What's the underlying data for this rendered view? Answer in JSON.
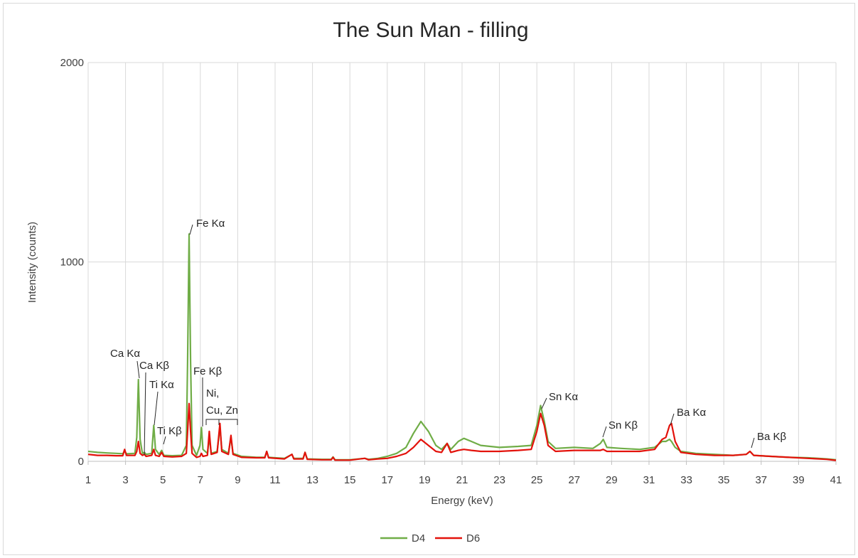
{
  "chart_data": {
    "type": "line",
    "title": "The Sun Man - filling",
    "x_label": "Energy (keV)",
    "y_label": "Intensity (counts)",
    "xlim": [
      1,
      41
    ],
    "xticks": [
      1,
      3,
      5,
      7,
      9,
      11,
      13,
      15,
      17,
      19,
      21,
      23,
      25,
      27,
      29,
      31,
      33,
      35,
      37,
      39,
      41
    ],
    "ylim": [
      0,
      2000
    ],
    "yticks": [
      0,
      1000,
      2000
    ],
    "grid": true,
    "legend": "bottom",
    "x": [
      1.0,
      1.5,
      2.0,
      2.5,
      2.85,
      2.95,
      3.05,
      3.5,
      3.6,
      3.69,
      3.78,
      3.9,
      4.01,
      4.1,
      4.4,
      4.51,
      4.6,
      4.8,
      4.93,
      5.05,
      5.5,
      6.0,
      6.25,
      6.32,
      6.4,
      6.48,
      6.56,
      6.8,
      6.98,
      7.06,
      7.14,
      7.38,
      7.48,
      7.58,
      7.9,
      8.05,
      8.15,
      8.5,
      8.64,
      8.75,
      9.2,
      10.0,
      10.45,
      10.55,
      10.65,
      11.5,
      11.9,
      12.0,
      12.5,
      12.6,
      12.72,
      13.5,
      14.0,
      14.1,
      14.2,
      15.0,
      15.8,
      16.0,
      16.5,
      17.0,
      17.5,
      18.0,
      18.4,
      18.8,
      19.2,
      19.6,
      19.9,
      20.2,
      20.4,
      20.8,
      21.1,
      21.5,
      22.0,
      23.0,
      24.0,
      24.7,
      25.0,
      25.2,
      25.4,
      25.6,
      26.0,
      27.0,
      28.0,
      28.4,
      28.55,
      28.75,
      29.5,
      30.5,
      31.3,
      31.7,
      31.9,
      32.1,
      32.2,
      32.4,
      32.7,
      33.5,
      34.5,
      35.5,
      36.2,
      36.4,
      36.6,
      37.5,
      38.5,
      39.5,
      40.5,
      41.0
    ],
    "series": [
      {
        "name": "D4",
        "color": "#70ad47",
        "values": [
          50,
          45,
          42,
          40,
          38,
          50,
          38,
          40,
          120,
          410,
          110,
          40,
          45,
          35,
          40,
          180,
          60,
          35,
          55,
          30,
          28,
          30,
          80,
          500,
          1140,
          500,
          80,
          30,
          80,
          170,
          60,
          40,
          120,
          40,
          50,
          170,
          60,
          40,
          120,
          40,
          25,
          20,
          20,
          50,
          20,
          15,
          35,
          15,
          15,
          45,
          12,
          10,
          10,
          22,
          8,
          8,
          15,
          10,
          15,
          25,
          40,
          70,
          140,
          200,
          150,
          80,
          60,
          90,
          60,
          100,
          115,
          100,
          80,
          70,
          75,
          80,
          180,
          280,
          200,
          100,
          65,
          70,
          65,
          90,
          110,
          70,
          65,
          60,
          70,
          100,
          100,
          110,
          100,
          70,
          50,
          40,
          35,
          30,
          35,
          50,
          30,
          25,
          20,
          18,
          12,
          8
        ]
      },
      {
        "name": "D6",
        "color": "#e3120b",
        "values": [
          35,
          30,
          30,
          28,
          28,
          60,
          30,
          30,
          50,
          100,
          40,
          30,
          35,
          25,
          30,
          60,
          30,
          25,
          45,
          25,
          22,
          25,
          40,
          150,
          290,
          150,
          40,
          20,
          25,
          40,
          25,
          30,
          150,
          35,
          45,
          190,
          50,
          35,
          130,
          35,
          20,
          18,
          18,
          50,
          18,
          12,
          35,
          12,
          12,
          45,
          10,
          8,
          8,
          20,
          6,
          6,
          15,
          8,
          12,
          15,
          25,
          40,
          70,
          110,
          80,
          50,
          45,
          90,
          45,
          55,
          60,
          55,
          50,
          50,
          55,
          60,
          150,
          240,
          180,
          80,
          50,
          55,
          55,
          55,
          60,
          50,
          50,
          50,
          60,
          110,
          120,
          180,
          190,
          100,
          45,
          35,
          30,
          30,
          35,
          50,
          30,
          25,
          20,
          15,
          10,
          5
        ]
      }
    ],
    "annotations": [
      "Ca Kα",
      "Ca Kβ",
      "Ti Kα",
      "Ti Kβ",
      "Fe Kα",
      "Fe Kβ",
      "Ni,",
      "Cu, Zn",
      "Sn Kα",
      "Sn Kβ",
      "Ba Kα",
      "Ba Kβ"
    ]
  }
}
